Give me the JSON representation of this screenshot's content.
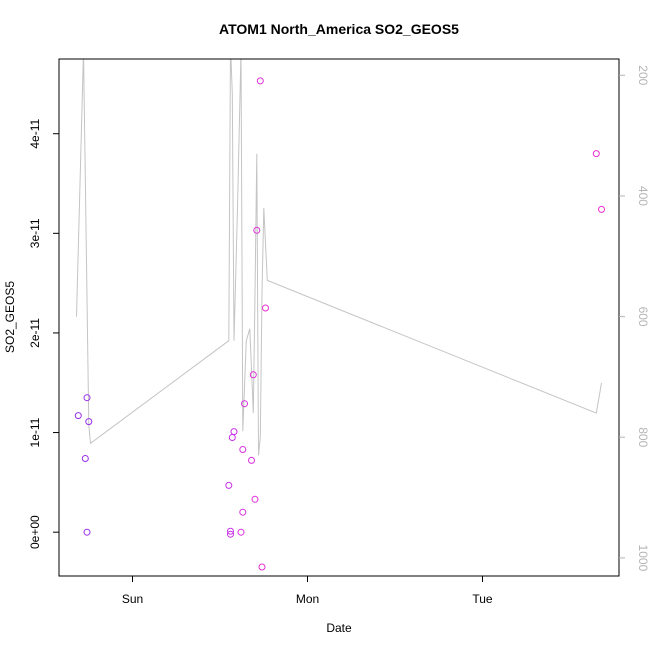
{
  "chart_data": {
    "type": "scatter",
    "title": "ATOM1 North_America SO2_GEOS5",
    "xlabel": "Date",
    "ylabel": "SO2_GEOS5",
    "x_axis": {
      "unit": "days",
      "range": [
        -0.42,
        2.78
      ],
      "ticks": [
        {
          "value": 0,
          "label": "Sun"
        },
        {
          "value": 1,
          "label": "Mon"
        },
        {
          "value": 2,
          "label": "Tue"
        }
      ]
    },
    "y_axis": {
      "range": [
        -4.4e-12,
        4.75e-11
      ],
      "ticks": [
        {
          "value": 0,
          "label": "0e+00"
        },
        {
          "value": 1e-11,
          "label": "1e-11"
        },
        {
          "value": 2e-11,
          "label": "2e-11"
        },
        {
          "value": 3e-11,
          "label": "3e-11"
        },
        {
          "value": 4e-11,
          "label": "4e-11"
        }
      ]
    },
    "y2_axis": {
      "reversed": true,
      "range": [
        1030,
        173
      ],
      "ticks": [
        {
          "value": 200,
          "label": "200"
        },
        {
          "value": 400,
          "label": "400"
        },
        {
          "value": 600,
          "label": "600"
        },
        {
          "value": 800,
          "label": "800"
        },
        {
          "value": 1000,
          "label": "1000"
        }
      ],
      "color": "#b5b5b5"
    },
    "points": [
      {
        "x": -0.31,
        "y": 1.17e-11,
        "color": "#9a30e8"
      },
      {
        "x": -0.27,
        "y": 7.4e-12,
        "color": "#9a30e8"
      },
      {
        "x": -0.26,
        "y": 1.35e-11,
        "color": "#9a30e8"
      },
      {
        "x": -0.26,
        "y": 0.0,
        "color": "#9a30e8"
      },
      {
        "x": -0.25,
        "y": 1.11e-11,
        "color": "#9a30e8"
      },
      {
        "x": 0.55,
        "y": 4.7e-12,
        "color": "#c830e8"
      },
      {
        "x": 0.56,
        "y": 1e-13,
        "color": "#c830e8"
      },
      {
        "x": 0.56,
        "y": -2e-13,
        "color": "#c830e8"
      },
      {
        "x": 0.57,
        "y": 9.5e-12,
        "color": "#c830e8"
      },
      {
        "x": 0.58,
        "y": 1.01e-11,
        "color": "#c830e8"
      },
      {
        "x": 0.62,
        "y": 0.0,
        "color": "#d930e0"
      },
      {
        "x": 0.63,
        "y": 2e-12,
        "color": "#d930e0"
      },
      {
        "x": 0.63,
        "y": 8.3e-12,
        "color": "#d930e0"
      },
      {
        "x": 0.64,
        "y": 1.29e-11,
        "color": "#d930e0"
      },
      {
        "x": 0.68,
        "y": 7.2e-12,
        "color": "#d930e0"
      },
      {
        "x": 0.69,
        "y": 1.58e-11,
        "color": "#e030d8"
      },
      {
        "x": 0.7,
        "y": 3.3e-12,
        "color": "#e030d8"
      },
      {
        "x": 0.71,
        "y": 3.03e-11,
        "color": "#e030d8"
      },
      {
        "x": 0.73,
        "y": 4.53e-11,
        "color": "#e030d8"
      },
      {
        "x": 0.74,
        "y": -3.5e-12,
        "color": "#e830d0"
      },
      {
        "x": 0.76,
        "y": 2.25e-11,
        "color": "#e830d0"
      },
      {
        "x": 2.65,
        "y": 3.8e-11,
        "color": "#ef2fd0"
      },
      {
        "x": 2.68,
        "y": 3.24e-11,
        "color": "#ef2fd0"
      }
    ],
    "pressure_line": {
      "color": "#c4c4c4",
      "x": [
        -0.32,
        -0.28,
        -0.25,
        -0.24,
        0.55,
        0.56,
        0.57,
        0.58,
        0.6,
        0.62,
        0.63,
        0.65,
        0.67,
        0.69,
        0.7,
        0.71,
        0.72,
        0.73,
        0.74,
        0.75,
        0.77,
        2.65,
        2.68
      ],
      "y": [
        600,
        160,
        780,
        810,
        640,
        150,
        230,
        640,
        420,
        160,
        790,
        640,
        620,
        760,
        560,
        330,
        830,
        800,
        560,
        420,
        540,
        760,
        710
      ]
    }
  }
}
